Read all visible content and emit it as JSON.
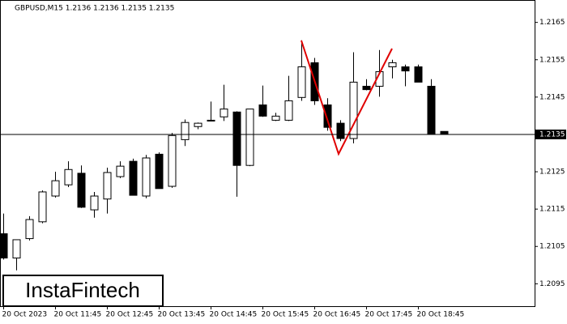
{
  "chart_data": {
    "type": "candlestick",
    "title": "GBPUSD,M15  1.2136 1.2136 1.2135 1.2135",
    "watermark": "InstaFintech",
    "categories": [
      "20 Oct 2023",
      null,
      null,
      null,
      "20 Oct 11:45",
      null,
      null,
      null,
      "20 Oct 12:45",
      null,
      null,
      null,
      "20 Oct 13:45",
      null,
      null,
      null,
      "20 Oct 14:45",
      null,
      null,
      null,
      "20 Oct 15:45",
      null,
      null,
      null,
      "20 Oct 16:45",
      null,
      null,
      null,
      "20 Oct 17:45",
      null,
      null,
      null,
      "20 Oct 18:45",
      null,
      null
    ],
    "open": [
      1.21084,
      1.21019,
      1.21071,
      1.21116,
      1.21185,
      1.21215,
      1.21246,
      1.21148,
      1.21177,
      1.21237,
      1.21278,
      1.21185,
      1.21297,
      1.21211,
      1.21336,
      1.21371,
      1.21388,
      1.21397,
      1.2141,
      1.21267,
      1.21429,
      1.21388,
      1.21388,
      1.21449,
      1.21542,
      1.21429,
      1.2138,
      1.21339,
      1.21479,
      1.21479,
      1.21531,
      1.21531,
      1.21531,
      1.21479,
      1.21358
    ],
    "high": [
      1.21138,
      1.21062,
      1.21131,
      1.212,
      1.2125,
      1.21278,
      1.21267,
      1.21196,
      1.21261,
      1.21278,
      1.21285,
      1.21295,
      1.21302,
      1.21354,
      1.2139,
      1.21382,
      1.21438,
      1.21483,
      1.21412,
      1.21418,
      1.21481,
      1.21408,
      1.21507,
      1.21602,
      1.21555,
      1.21447,
      1.21388,
      1.2157,
      1.21498,
      1.21576,
      1.2155,
      1.21537,
      1.21537,
      1.21498,
      1.21358
    ],
    "low": [
      1.21015,
      1.20986,
      1.21066,
      1.21112,
      1.21181,
      1.21209,
      1.21153,
      1.21127,
      1.21138,
      1.21233,
      1.21187,
      1.21179,
      1.21205,
      1.21207,
      1.21319,
      1.21364,
      1.21386,
      1.21386,
      1.21183,
      1.21265,
      1.21397,
      1.21386,
      1.21386,
      1.2144,
      1.21429,
      1.2136,
      1.21332,
      1.21326,
      1.21468,
      1.21451,
      1.215,
      1.21479,
      1.2149,
      1.2135,
      1.2135
    ],
    "close": [
      1.21019,
      1.21068,
      1.21122,
      1.21196,
      1.21226,
      1.21256,
      1.21155,
      1.21185,
      1.21248,
      1.21265,
      1.21187,
      1.21287,
      1.21205,
      1.21347,
      1.21382,
      1.2138,
      1.21388,
      1.21418,
      1.21267,
      1.21418,
      1.21399,
      1.21399,
      1.2144,
      1.21531,
      1.2144,
      1.21369,
      1.21339,
      1.2149,
      1.2147,
      1.21518,
      1.21542,
      1.2152,
      1.2149,
      1.2135,
      1.2135
    ],
    "up_color": "#ffffff",
    "down_color": "#000000",
    "pattern_color": "#e00000",
    "current_price": 1.2135,
    "ylim": [
      1.2089,
      1.2171
    ],
    "yticks": [
      1.2095,
      1.2105,
      1.2115,
      1.2125,
      1.2135,
      1.2145,
      1.2155,
      1.2165
    ]
  }
}
